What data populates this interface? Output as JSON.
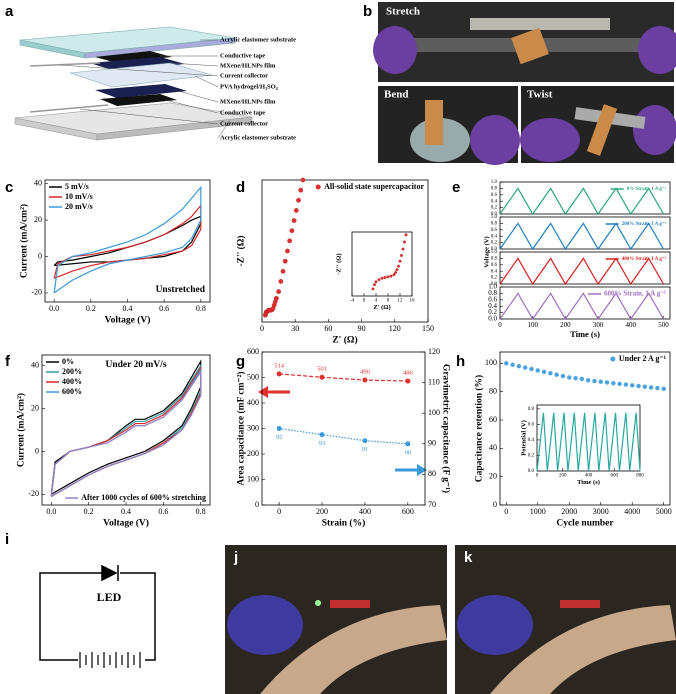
{
  "panel_labels": [
    "a",
    "b",
    "c",
    "d",
    "e",
    "f",
    "g",
    "h",
    "i",
    "j",
    "k"
  ],
  "layers": [
    "Acrylic elastomer substrate",
    "Conductive tape",
    "MXene/HLNPs film",
    "Current collector",
    "PVA hydrogel/H₂SO₄",
    "MXene/HLNPs film",
    "Conductive tape",
    "Current collector",
    "Acrylic elastomer substrate"
  ],
  "photo_labels": [
    "Stretch",
    "Bend",
    "Twist"
  ],
  "circuit_label": "LED",
  "chart_data": [
    {
      "type": "line",
      "xlabel": "Voltage (V)",
      "ylabel": "Current (mA/cm²)",
      "annotation": "Unstretched",
      "legend": "upper left",
      "xlim": [
        -0.05,
        0.85
      ],
      "xticks": [
        {
          "value": 0,
          "label": "0.0"
        },
        0.2,
        0.4,
        0.6,
        0.8
      ],
      "ylim": [
        -25,
        42
      ],
      "yticks": [
        -20,
        0,
        20,
        40
      ],
      "x": [
        0,
        0.02,
        0.1,
        0.2,
        0.3,
        0.4,
        0.5,
        0.6,
        0.7,
        0.75,
        0.8,
        0.8,
        0.75,
        0.7,
        0.6,
        0.5,
        0.4,
        0.3,
        0.2,
        0.1,
        0
      ],
      "series": [
        {
          "name": "5 mV/s",
          "color": "#000000",
          "values": [
            -5,
            -3,
            -2,
            0,
            2,
            5,
            8,
            12,
            17,
            20,
            22,
            18,
            8,
            3,
            0,
            -1,
            -2,
            -3,
            -3,
            -4,
            -5
          ]
        },
        {
          "name": "10 mV/s",
          "color": "#d62728",
          "values": [
            -12,
            -4,
            0,
            1,
            3,
            5,
            8,
            12,
            18,
            22,
            28,
            15,
            6,
            3,
            1,
            -1,
            -2,
            -3,
            -5,
            -8,
            -12
          ]
        },
        {
          "name": "20 mV/s",
          "color": "#3a9ad9",
          "values": [
            -20,
            -5,
            0,
            2,
            5,
            8,
            12,
            18,
            26,
            32,
            38,
            20,
            10,
            5,
            2,
            0,
            -2,
            -4,
            -8,
            -13,
            -20
          ]
        }
      ]
    },
    {
      "type": "scatter",
      "xlabel": "Z' (Ω)",
      "ylabel": "-Z'' (Ω)",
      "legend": "upper right",
      "xlim": [
        0,
        150
      ],
      "xticks": [
        0,
        30,
        60,
        90,
        120,
        150
      ],
      "ylim": [
        -2,
        40
      ],
      "x": [
        3,
        3.5,
        4,
        5,
        6,
        7,
        8,
        9,
        10,
        11,
        12,
        13,
        15,
        17,
        19,
        21,
        23,
        25,
        27,
        29,
        31,
        33,
        35,
        37
      ],
      "series": [
        {
          "name": "All-solid state supercapacitor",
          "color": "#e03030",
          "values": [
            0,
            0.5,
            1,
            1.2,
            1.5,
            1.5,
            1.5,
            1.6,
            2,
            3,
            4,
            5,
            7,
            10,
            13,
            16,
            19,
            22,
            25,
            28,
            31,
            34,
            37,
            40
          ]
        }
      ]
    },
    {
      "type": "scatter",
      "xlabel": "Z' (Ω)",
      "ylabel": "-Z'' (Ω)",
      "xlim": [
        -4,
        16
      ],
      "xticks": [
        -4,
        0,
        4,
        8,
        12,
        16
      ],
      "ylim": [
        -1,
        8
      ],
      "x": [
        3,
        3.5,
        4,
        5,
        6,
        7,
        8,
        9,
        10,
        10.5,
        11,
        11.5,
        12,
        12.5,
        13,
        13.5,
        14
      ],
      "series": [
        {
          "color": "#e03030",
          "values": [
            0,
            0.6,
            1,
            1.3,
            1.5,
            1.6,
            1.7,
            1.8,
            2,
            2.3,
            2.7,
            3.2,
            3.9,
            4.7,
            5.6,
            6.6,
            7.6
          ]
        }
      ]
    },
    {
      "type": "line",
      "ylabel": "Voltage (V)",
      "legend": "upper right",
      "xlim": [
        0,
        520
      ],
      "ylim": [
        0,
        1
      ],
      "yticks": [
        {
          "value": 0,
          "label": "0.0"
        },
        0.2,
        0.4,
        0.6,
        0.8,
        {
          "value": 1,
          "label": "1.0"
        }
      ],
      "x": [
        0,
        55,
        100,
        155,
        200,
        255,
        300,
        355,
        400,
        455,
        500
      ],
      "series": [
        {
          "name": "0% Strain, 1 A g⁻¹",
          "color": "#2ca87a",
          "values": [
            0,
            0.8,
            0,
            0.8,
            0,
            0.8,
            0,
            0.8,
            0,
            0.8,
            0
          ]
        }
      ]
    },
    {
      "type": "line",
      "legend": "upper right",
      "xlim": [
        0,
        520
      ],
      "ylim": [
        0,
        1
      ],
      "yticks": [
        {
          "value": 0,
          "label": "0.0"
        },
        0.2,
        0.4,
        0.6,
        0.8,
        {
          "value": 1,
          "label": "1.0"
        }
      ],
      "x": [
        0,
        55,
        100,
        155,
        200,
        255,
        300,
        355,
        400,
        455,
        500
      ],
      "series": [
        {
          "name": "200% Strain, 1 A g⁻¹",
          "color": "#1f7fc0",
          "values": [
            0,
            0.8,
            0,
            0.8,
            0,
            0.8,
            0,
            0.8,
            0,
            0.8,
            0
          ]
        }
      ]
    },
    {
      "type": "line",
      "legend": "upper right",
      "xlim": [
        0,
        520
      ],
      "ylim": [
        0,
        1
      ],
      "yticks": [
        {
          "value": 0,
          "label": "0.0"
        },
        0.2,
        0.4,
        0.6,
        0.8,
        {
          "value": 1,
          "label": "1.0"
        }
      ],
      "x": [
        0,
        55,
        100,
        155,
        200,
        255,
        300,
        355,
        400,
        455,
        500
      ],
      "series": [
        {
          "name": "400% Strain, 1 A g⁻¹",
          "color": "#d62020",
          "values": [
            0,
            0.8,
            0,
            0.8,
            0,
            0.8,
            0,
            0.8,
            0,
            0.8,
            0
          ]
        }
      ]
    },
    {
      "type": "line",
      "xlabel": "Time (s)",
      "legend": "upper right",
      "xlim": [
        0,
        520
      ],
      "ylim": [
        0,
        1
      ],
      "xticks": [
        0,
        100,
        200,
        300,
        400,
        500
      ],
      "yticks": [
        {
          "value": 0,
          "label": "0.0"
        },
        0.2,
        0.4,
        0.6,
        0.8,
        {
          "value": 1,
          "label": "1.0"
        }
      ],
      "x": [
        0,
        55,
        100,
        155,
        200,
        255,
        300,
        355,
        400,
        455,
        500
      ],
      "series": [
        {
          "name": "600% Strain, 1 A g⁻¹",
          "color": "#a070c0",
          "values": [
            0,
            0.8,
            0,
            0.8,
            0,
            0.8,
            0,
            0.8,
            0,
            0.8,
            0
          ]
        }
      ]
    },
    {
      "type": "line",
      "xlabel": "Voltage (V)",
      "ylabel": "Current (mA/cm²)",
      "annotation": "Under 20 mV/s",
      "legend": "upper left",
      "xlim": [
        -0.05,
        0.85
      ],
      "xticks": [
        {
          "value": 0,
          "label": "0.0"
        },
        0.2,
        0.4,
        0.6,
        0.8
      ],
      "ylim": [
        -25,
        45
      ],
      "yticks": [
        -20,
        0,
        20,
        40
      ],
      "x": [
        0,
        0.02,
        0.1,
        0.2,
        0.3,
        0.4,
        0.45,
        0.5,
        0.6,
        0.7,
        0.8,
        0.8,
        0.75,
        0.7,
        0.6,
        0.5,
        0.4,
        0.3,
        0.2,
        0.1,
        0
      ],
      "series": [
        {
          "name": "0%",
          "color": "#000000",
          "values": [
            -20,
            -5,
            0,
            2,
            5,
            12,
            15,
            15,
            19,
            27,
            42,
            30,
            20,
            12,
            5,
            0,
            -3,
            -6,
            -10,
            -15,
            -20
          ]
        },
        {
          "name": "200%",
          "color": "#33a0a0",
          "values": [
            -21,
            -6,
            0,
            2,
            5,
            11,
            14,
            14,
            18,
            26,
            40,
            28,
            19,
            11,
            4,
            -1,
            -4,
            -7,
            -11,
            -16,
            -21
          ]
        },
        {
          "name": "400%",
          "color": "#d62728",
          "values": [
            -21,
            -6,
            0,
            2,
            5,
            10,
            13,
            13,
            17,
            25,
            39,
            27,
            18,
            10,
            4,
            -1,
            -4,
            -7,
            -11,
            -16,
            -21
          ]
        },
        {
          "name": "600%",
          "color": "#3a9ad9",
          "values": [
            -21,
            -6,
            0,
            2,
            4,
            9,
            12,
            12,
            16,
            24,
            38,
            26,
            17,
            10,
            3,
            -1,
            -4,
            -7,
            -11,
            -16,
            -21
          ]
        },
        {
          "name": "After 1000 cycles of 600% stretching",
          "color": "#9d7fc0",
          "legend": "lower right",
          "values": [
            -21,
            -6,
            0,
            2,
            4,
            9,
            12,
            12,
            16,
            24,
            37,
            26,
            17,
            10,
            3,
            -1,
            -4,
            -7,
            -11,
            -16,
            -21
          ]
        }
      ]
    },
    {
      "type": "line",
      "xlabel": "Strain (%)",
      "ylabel": "Area capacitance (mF cm⁻²)",
      "y2label": "Gravimetric capacitance (F g⁻¹)",
      "data_labels": true,
      "xlim": [
        -80,
        680
      ],
      "xticks": [
        0,
        200,
        400,
        600
      ],
      "ylim": [
        0,
        600
      ],
      "yticks": [
        0,
        100,
        200,
        300,
        400,
        500,
        600
      ],
      "y2lim": [
        70,
        120
      ],
      "y2ticks": [
        70,
        80,
        90,
        100,
        110,
        120
      ],
      "x": [
        0,
        200,
        400,
        600
      ],
      "series": [
        {
          "color": "#e03030",
          "linestyle": "dashed",
          "values": [
            514,
            501,
            490,
            486
          ]
        },
        {
          "color": "#3a9ad9",
          "linestyle": "dotted",
          "axis": "y2",
          "values": [
            95,
            93,
            91,
            90
          ]
        }
      ]
    },
    {
      "type": "scatter",
      "xlabel": "Cycle number",
      "ylabel": "Capacitance retention (%)",
      "legend": "upper right",
      "xlim": [
        -200,
        5200
      ],
      "xticks": [
        0,
        1000,
        2000,
        3000,
        4000,
        5000
      ],
      "ylim": [
        0,
        108
      ],
      "yticks": [
        0,
        20,
        40,
        60,
        80,
        100
      ],
      "x": [
        0,
        200,
        400,
        600,
        800,
        1000,
        1200,
        1400,
        1600,
        1800,
        2000,
        2200,
        2400,
        2600,
        2800,
        3000,
        3200,
        3400,
        3600,
        3800,
        4000,
        4200,
        4400,
        4600,
        4800,
        5000
      ],
      "series": [
        {
          "name": "Under 2 A g⁻¹",
          "color": "#4aa3df",
          "values": [
            100,
            99,
            98,
            97,
            96,
            95,
            94,
            93,
            92,
            91,
            90,
            89.5,
            89,
            88,
            87.5,
            87,
            86.5,
            86,
            85.5,
            85,
            84.5,
            84,
            83.5,
            83,
            82.5,
            82
          ]
        }
      ]
    },
    {
      "type": "line",
      "xlabel": "Time (s)",
      "ylabel": "Potential (V)",
      "xlim": [
        0,
        800
      ],
      "xticks": [
        0,
        200,
        400,
        600,
        800
      ],
      "ylim": [
        0,
        0.85
      ],
      "yticks": [
        {
          "value": 0,
          "label": "0.0"
        },
        0.2,
        0.4,
        0.6,
        0.8
      ],
      "x": [
        0,
        50,
        80,
        130,
        160,
        210,
        240,
        290,
        320,
        370,
        400,
        450,
        480,
        530,
        560,
        610,
        640,
        690,
        720,
        770,
        800
      ],
      "series": [
        {
          "color": "#2aa8a0",
          "values": [
            0,
            0.75,
            0,
            0.75,
            0,
            0.75,
            0,
            0.75,
            0,
            0.75,
            0,
            0.75,
            0,
            0.75,
            0,
            0.75,
            0,
            0.75,
            0,
            0.75,
            0
          ]
        }
      ]
    }
  ]
}
